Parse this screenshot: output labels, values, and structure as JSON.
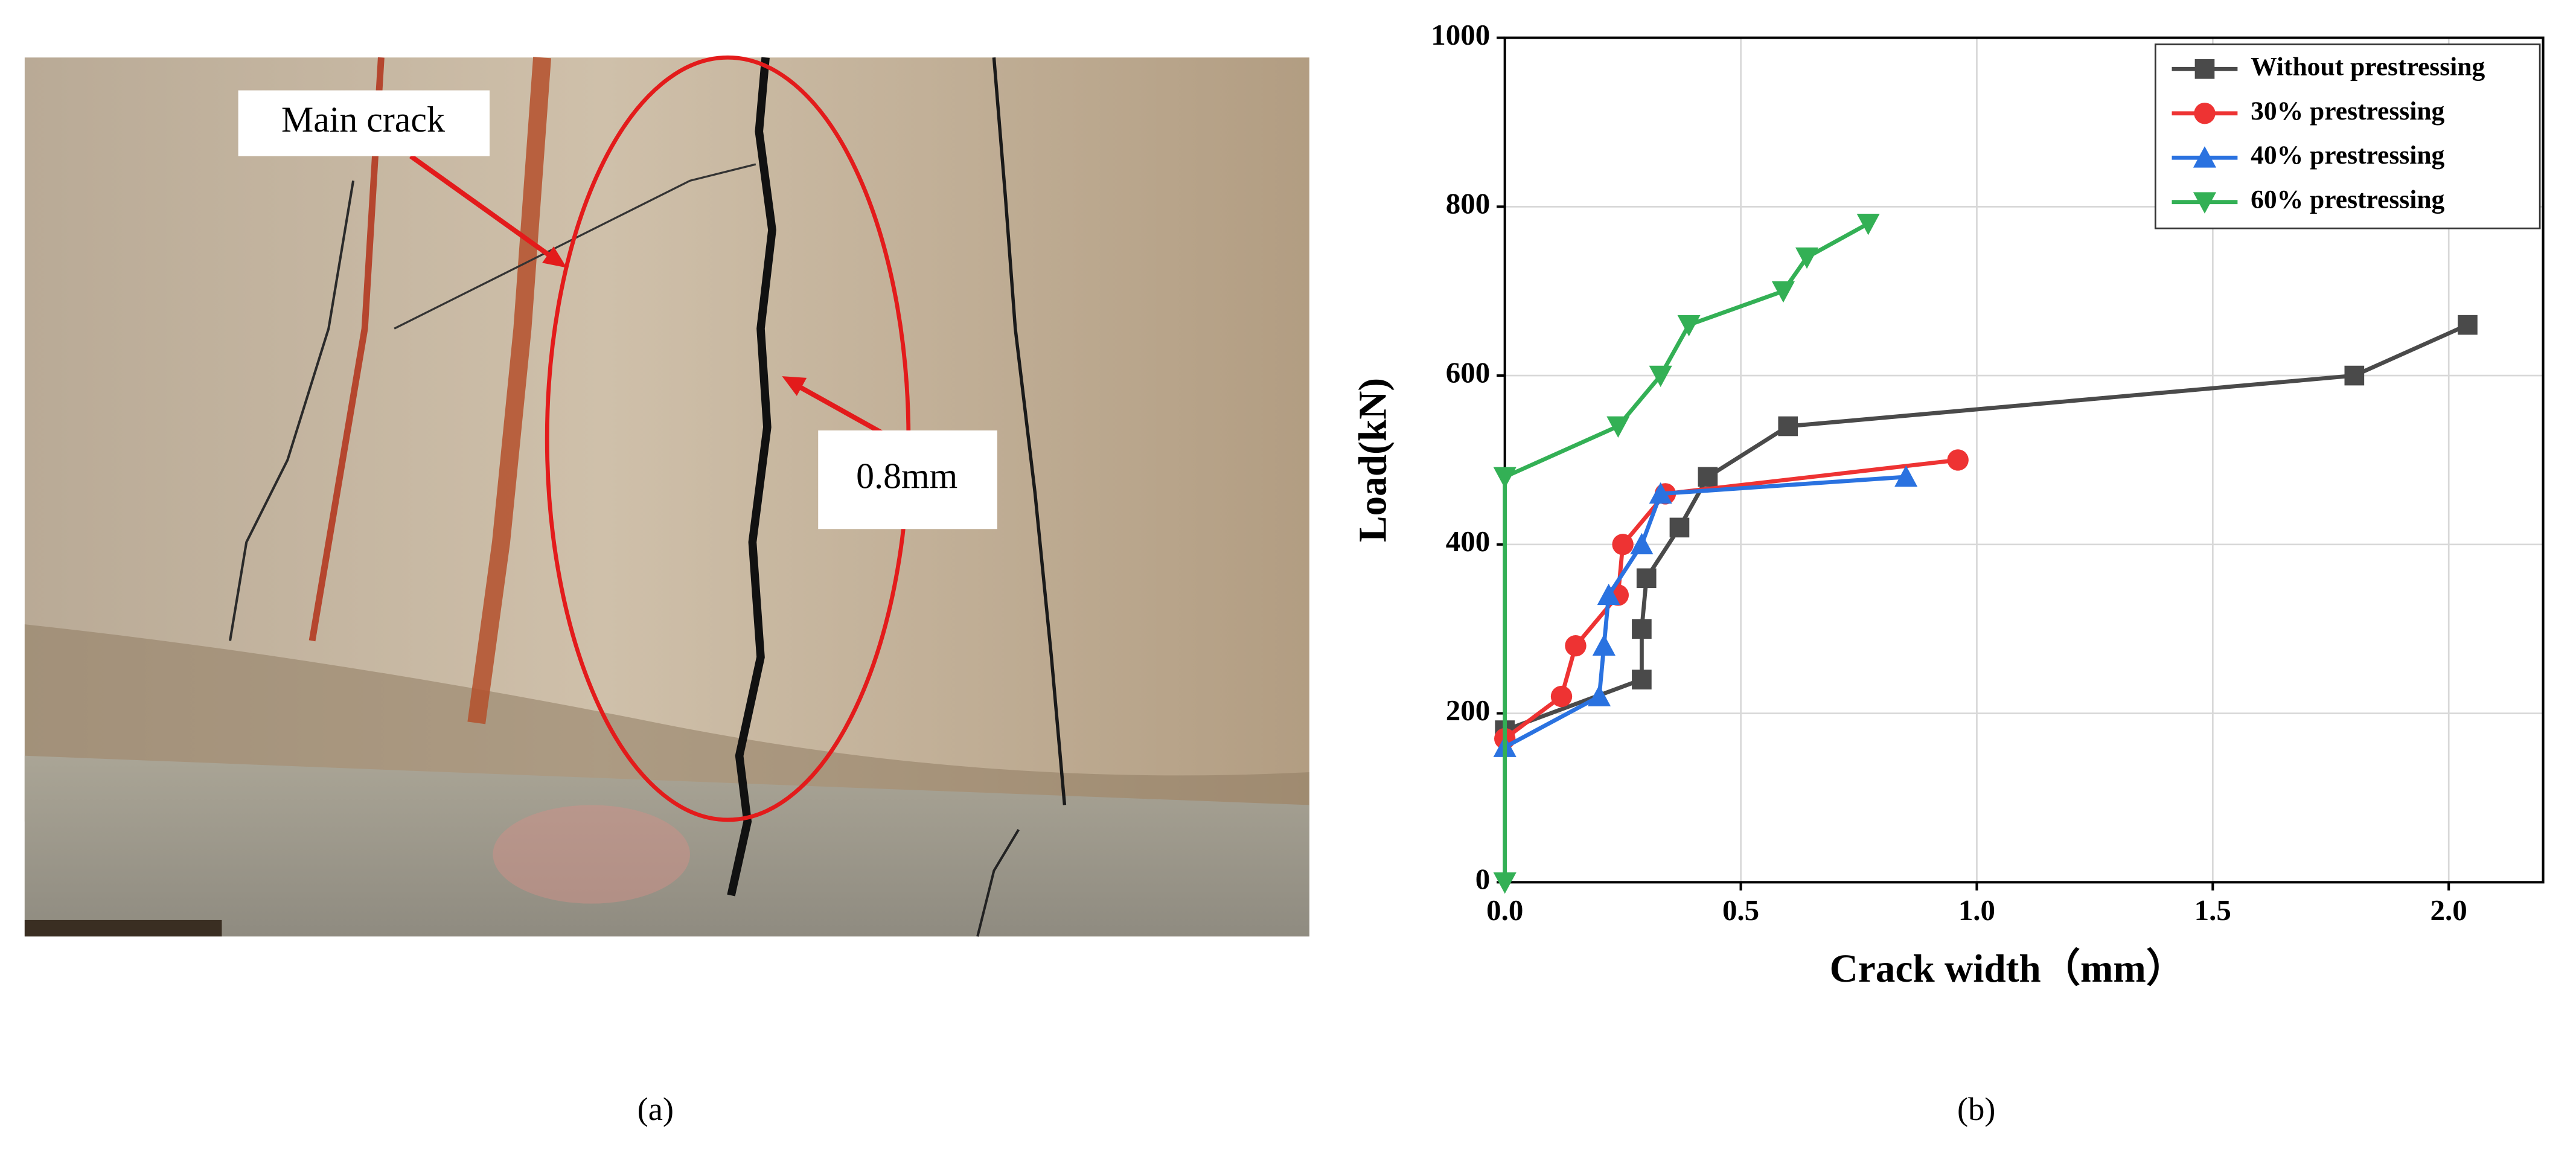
{
  "photo": {
    "labels": [
      "Main crack",
      "0.8mm"
    ]
  },
  "captions": [
    "(a)",
    "(b)"
  ],
  "chart_data": {
    "type": "line",
    "x_label": "Crack width（mm）",
    "y_label": "Load(kN)",
    "xlim": [
      0,
      2.2
    ],
    "ylim": [
      0,
      1000
    ],
    "xticks": [
      {
        "value": 0,
        "label": "0.0"
      },
      0.5,
      {
        "value": 1,
        "label": "1.0"
      },
      1.5,
      {
        "value": 2,
        "label": "2.0"
      }
    ],
    "yticks": [
      0,
      200,
      400,
      600,
      800,
      1000
    ],
    "grid": true,
    "legend": "upper right",
    "series": [
      {
        "name": "Without prestressing",
        "color": "#4a4a4a",
        "marker": "square",
        "x": [
          0,
          0.29,
          0.29,
          0.3,
          0.37,
          0.43,
          0.6,
          1.8,
          2.04
        ],
        "values": [
          180,
          240,
          300,
          360,
          420,
          480,
          540,
          600,
          660
        ]
      },
      {
        "name": "30% prestressing",
        "color": "#ee3333",
        "marker": "circle",
        "x": [
          0,
          0.12,
          0.15,
          0.24,
          0.25,
          0.34,
          0.96
        ],
        "values": [
          170,
          220,
          280,
          340,
          400,
          460,
          500
        ]
      },
      {
        "name": "40% prestressing",
        "color": "#2a72e0",
        "marker": "triangle-up",
        "x": [
          0,
          0.2,
          0.21,
          0.22,
          0.29,
          0.33,
          0.85
        ],
        "values": [
          160,
          220,
          280,
          340,
          400,
          460,
          480
        ]
      },
      {
        "name": "60% prestressing",
        "color": "#33b055",
        "marker": "triangle-down",
        "x": [
          0,
          0,
          0.24,
          0.33,
          0.39,
          0.59,
          0.64,
          0.77
        ],
        "values": [
          0,
          480,
          540,
          600,
          660,
          700,
          740,
          780
        ]
      }
    ]
  }
}
